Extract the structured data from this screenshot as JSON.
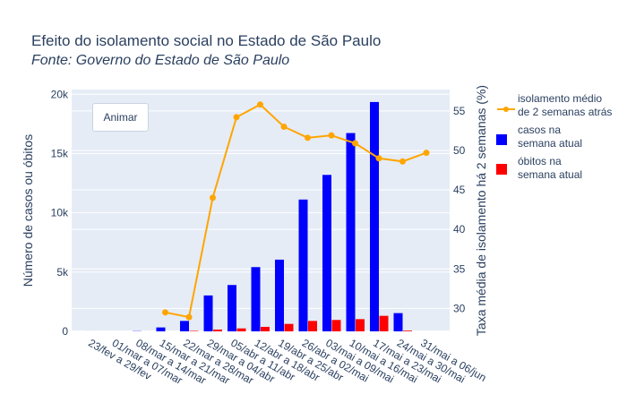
{
  "chart_data": {
    "type": "bar",
    "title": "Efeito do isolamento social no Estado de São Paulo",
    "subtitle": "Fonte: Governo do Estado de São Paulo",
    "ylabel": "Número de casos ou óbitos",
    "y2label": "Taxa média de isolamento há 2 semanas (%)",
    "ylim": [
      0,
      20400
    ],
    "y2lim": [
      27.1,
      57.7
    ],
    "yticks": [
      "0",
      "5k",
      "10k",
      "15k",
      "20k"
    ],
    "y2ticks": [
      "30",
      "35",
      "40",
      "45",
      "50",
      "55"
    ],
    "grid": true,
    "legend_position": "right",
    "categories": [
      "23/fev a 29/fev",
      "01/mar a 07/mar",
      "08/mar a 14/mar",
      "15/mar a 21/mar",
      "22/mar a 28/mar",
      "29/mar a 04/abr",
      "05/abr a 11/abr",
      "12/abr a 18/abr",
      "19/abr a 25/abr",
      "26/abr a 02/mai",
      "03/mai a 09/mai",
      "10/mai a 16/mai",
      "17/mai a 23/mai",
      "24/mai a 30/mai",
      "31/mai a 06/jun"
    ],
    "series": [
      {
        "name": "isolamento médio\nde 2 semanas atrás",
        "type": "line",
        "axis": "y2",
        "color": "#FFA500",
        "values": [
          null,
          null,
          null,
          29.5,
          28.9,
          44.0,
          54.2,
          55.8,
          53.0,
          51.6,
          51.9,
          50.9,
          49.0,
          48.6,
          49.7
        ]
      },
      {
        "name": "casos na\nsemana atual",
        "type": "bar",
        "axis": "y",
        "color": "#0000FF",
        "values": [
          2,
          0,
          20,
          330,
          880,
          3030,
          3910,
          5420,
          6050,
          11120,
          13200,
          16730,
          19350,
          1540,
          0
        ]
      },
      {
        "name": "óbitos na\nsemana atual",
        "type": "bar",
        "axis": "y",
        "color": "#FF0000",
        "values": [
          0,
          0,
          0,
          0,
          40,
          150,
          250,
          380,
          630,
          880,
          960,
          1030,
          1310,
          60,
          0
        ]
      }
    ]
  },
  "button": {
    "label": "Animar"
  }
}
